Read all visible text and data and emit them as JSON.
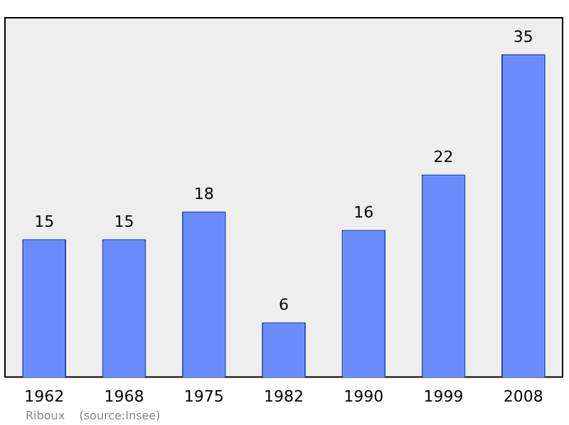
{
  "chart_data": {
    "type": "bar",
    "categories": [
      "1962",
      "1968",
      "1975",
      "1982",
      "1990",
      "1999",
      "2008"
    ],
    "values": [
      15,
      15,
      18,
      6,
      16,
      22,
      35
    ],
    "color": "#6b8cff",
    "data_labels": true,
    "grid": false,
    "legend": false,
    "tick_labels": "x",
    "annotations": [
      "Riboux    (source:Insee)"
    ]
  }
}
